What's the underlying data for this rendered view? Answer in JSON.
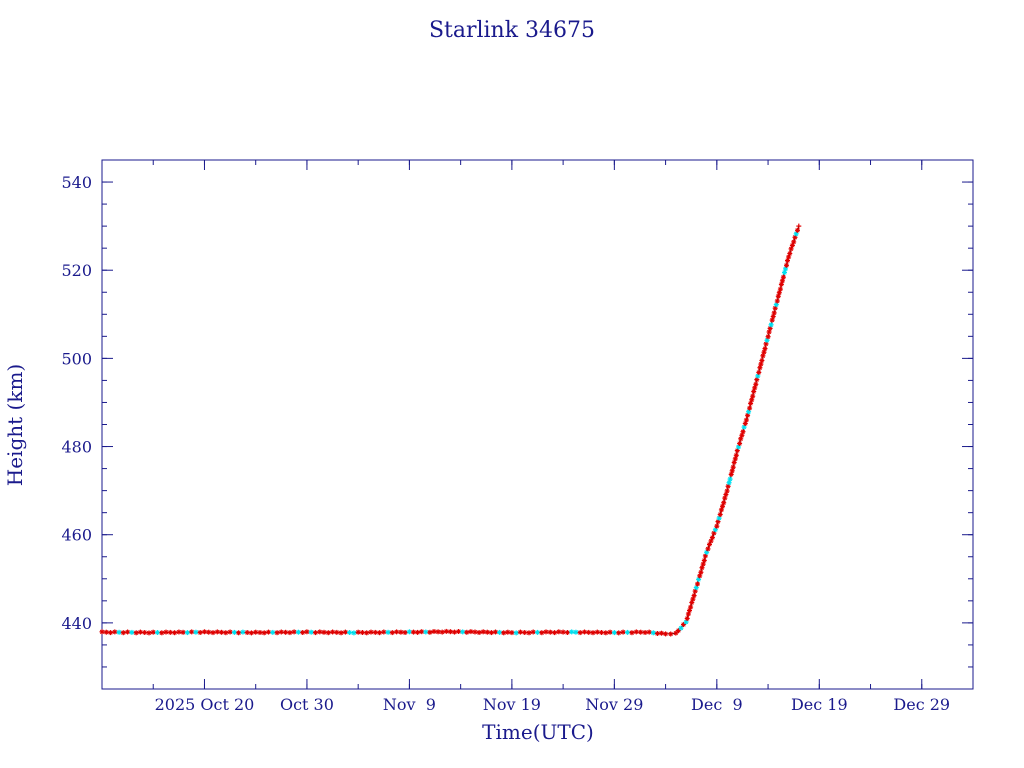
{
  "chart_data": {
    "type": "line",
    "title": "Starlink 34675",
    "xlabel": "Time(UTC)",
    "ylabel": "Height (km)",
    "x_tick_labels": [
      "2025 Oct 20",
      "Oct 30",
      "Nov  9",
      "Nov 19",
      "Nov 29",
      "Dec  9",
      "Dec 19",
      "Dec 29"
    ],
    "x_tick_dates": [
      "2025-10-20",
      "2025-10-30",
      "2025-11-09",
      "2025-11-19",
      "2025-11-29",
      "2025-12-09",
      "2025-12-19",
      "2025-12-29"
    ],
    "xlim": [
      "2025-10-10",
      "2026-01-03"
    ],
    "y_tick_labels": [
      "440",
      "460",
      "480",
      "500",
      "520",
      "540"
    ],
    "ylim": [
      425,
      545
    ],
    "grid": false,
    "colors": {
      "axes": "#1a1a8c",
      "line": "#000000",
      "marker_primary": "#e00000",
      "marker_secondary": "#00e0f0"
    },
    "series": [
      {
        "points": [
          {
            "x": "2025-10-10",
            "y": 437.9
          },
          {
            "x": "2025-10-15",
            "y": 437.8
          },
          {
            "x": "2025-10-20",
            "y": 437.9
          },
          {
            "x": "2025-10-25",
            "y": 437.8
          },
          {
            "x": "2025-10-30",
            "y": 437.9
          },
          {
            "x": "2025-11-04",
            "y": 437.8
          },
          {
            "x": "2025-11-09",
            "y": 437.9
          },
          {
            "x": "2025-11-13",
            "y": 438.0
          },
          {
            "x": "2025-11-19",
            "y": 437.8
          },
          {
            "x": "2025-11-24",
            "y": 437.9
          },
          {
            "x": "2025-11-29",
            "y": 437.8
          },
          {
            "x": "2025-12-02",
            "y": 437.9
          },
          {
            "x": "2025-12-04",
            "y": 437.5
          },
          {
            "x": "2025-12-05",
            "y": 437.6
          },
          {
            "x": "2025-12-06",
            "y": 440.2
          },
          {
            "x": "2025-12-07",
            "y": 448.0
          },
          {
            "x": "2025-12-08",
            "y": 456.0
          },
          {
            "x": "2025-12-09",
            "y": 462.0
          },
          {
            "x": "2025-12-10",
            "y": 470.0
          },
          {
            "x": "2025-12-11",
            "y": 479.0
          },
          {
            "x": "2025-12-12",
            "y": 487.0
          },
          {
            "x": "2025-12-13",
            "y": 496.0
          },
          {
            "x": "2025-12-14",
            "y": 505.0
          },
          {
            "x": "2025-12-15",
            "y": 514.0
          },
          {
            "x": "2025-12-16",
            "y": 523.0
          },
          {
            "x": "2025-12-17",
            "y": 530.0
          }
        ]
      }
    ]
  }
}
